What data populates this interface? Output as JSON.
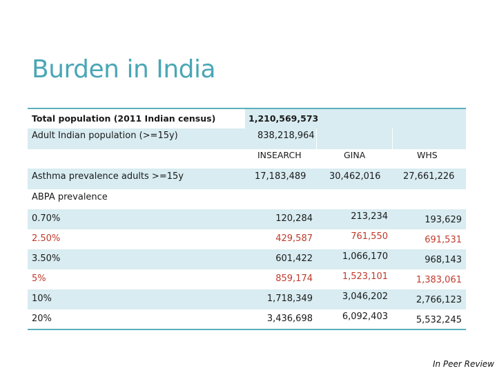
{
  "title": "Burden in India",
  "header_rows": [
    {
      "label": "Total population (2011 Indian census)",
      "value": "1,210,569,573"
    },
    {
      "label": "Adult Indian population (>=15y)",
      "value": "838,218,964"
    }
  ],
  "columns": [
    "INSEARCH",
    "GINA",
    "WHS"
  ],
  "asthma_row": {
    "label": "Asthma prevalence adults >=15y",
    "values": [
      "17,183,489",
      "30,462,016",
      "27,661,226"
    ]
  },
  "abpa_label": "ABPA prevalence",
  "abpa_rows": [
    {
      "label": "0.70%",
      "values": [
        "120,284",
        "213,234",
        "193,629"
      ],
      "red": false
    },
    {
      "label": "2.50%",
      "values": [
        "429,587",
        "761,550",
        "691,531"
      ],
      "red": true
    },
    {
      "label": "3.50%",
      "values": [
        "601,422",
        "1,066,170",
        "968,143"
      ],
      "red": false
    },
    {
      "label": "5%",
      "values": [
        "859,174",
        "1,523,101",
        "1,383,061"
      ],
      "red": true
    },
    {
      "label": "10%",
      "values": [
        "1,718,349",
        "3,046,202",
        "2,766,123"
      ],
      "red": false
    },
    {
      "label": "20%",
      "values": [
        "3,436,698",
        "6,092,403",
        "5,532,245"
      ],
      "red": false
    }
  ],
  "footer": "In Peer Review",
  "colors": {
    "accent": "#4aa6b6",
    "rule": "#5aaebd",
    "shade": "#d8ecf1",
    "red": "#c0392b"
  }
}
